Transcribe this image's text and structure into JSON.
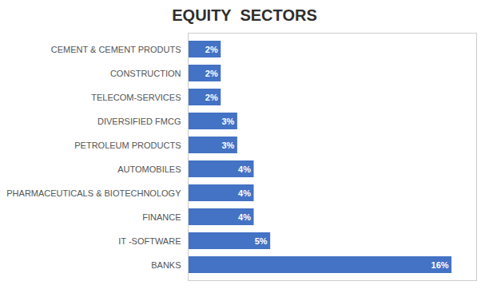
{
  "chart_data": {
    "type": "bar",
    "title": "EQUITY  SECTORS",
    "orientation": "horizontal",
    "categories": [
      "BANKS",
      "IT -SOFTWARE",
      "FINANCE",
      "PHARMACEUTICALS & BIOTECHNOLOGY",
      "AUTOMOBILES",
      "PETROLEUM PRODUCTS",
      "DIVERSIFIED FMCG",
      "TELECOM-SERVICES",
      "CONSTRUCTION",
      "CEMENT & CEMENT PRODUTS"
    ],
    "values": [
      16,
      5,
      4,
      4,
      4,
      3,
      3,
      2,
      2,
      2
    ],
    "value_labels": [
      "16%",
      "5%",
      "4%",
      "4%",
      "4%",
      "3%",
      "3%",
      "2%",
      "2%",
      "2%"
    ],
    "data_labels": true,
    "color": "#4472C4",
    "xlim": [
      0,
      17.5
    ],
    "tick_labels": "y"
  }
}
